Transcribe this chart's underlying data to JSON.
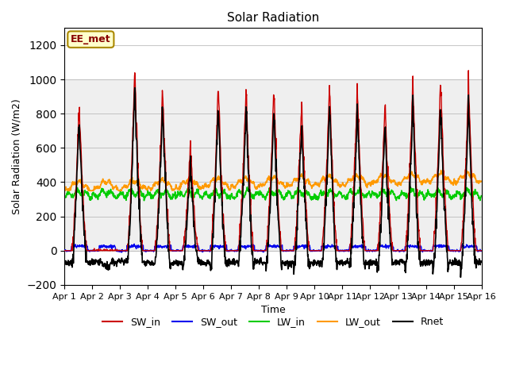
{
  "title": "Solar Radiation",
  "xlabel": "Time",
  "ylabel": "Solar Radiation (W/m2)",
  "ylim": [
    -200,
    1300
  ],
  "yticks": [
    -200,
    0,
    200,
    400,
    600,
    800,
    1000,
    1200
  ],
  "xtick_labels": [
    "Apr 1",
    "Apr 2",
    "Apr 3",
    "Apr 4",
    "Apr 5",
    "Apr 6",
    "Apr 7",
    "Apr 8",
    "Apr 9",
    "Apr 10",
    "Apr 11",
    "Apr 12",
    "Apr 13",
    "Apr 14",
    "Apr 15",
    "Apr 16"
  ],
  "colors": {
    "SW_in": "#cc0000",
    "SW_out": "#0000ee",
    "LW_in": "#00cc00",
    "LW_out": "#ff9900",
    "Rnet": "#000000"
  },
  "legend_label": "EE_met",
  "annotation_bg": "#ffffcc",
  "annotation_border": "#aa8800",
  "grid_color": "#bbbbbb",
  "shading_color": "#e0e0e0",
  "shading_alpha": 0.5,
  "n_days": 15,
  "dt": 1,
  "sw_peaks": [
    840,
    0,
    1070,
    950,
    620,
    970,
    960,
    940,
    880,
    980,
    960,
    860,
    990,
    1005,
    985
  ],
  "lw_in_base": 330,
  "lw_out_base": 375,
  "night_rnet": -70,
  "figsize": [
    6.4,
    4.8
  ],
  "dpi": 100
}
